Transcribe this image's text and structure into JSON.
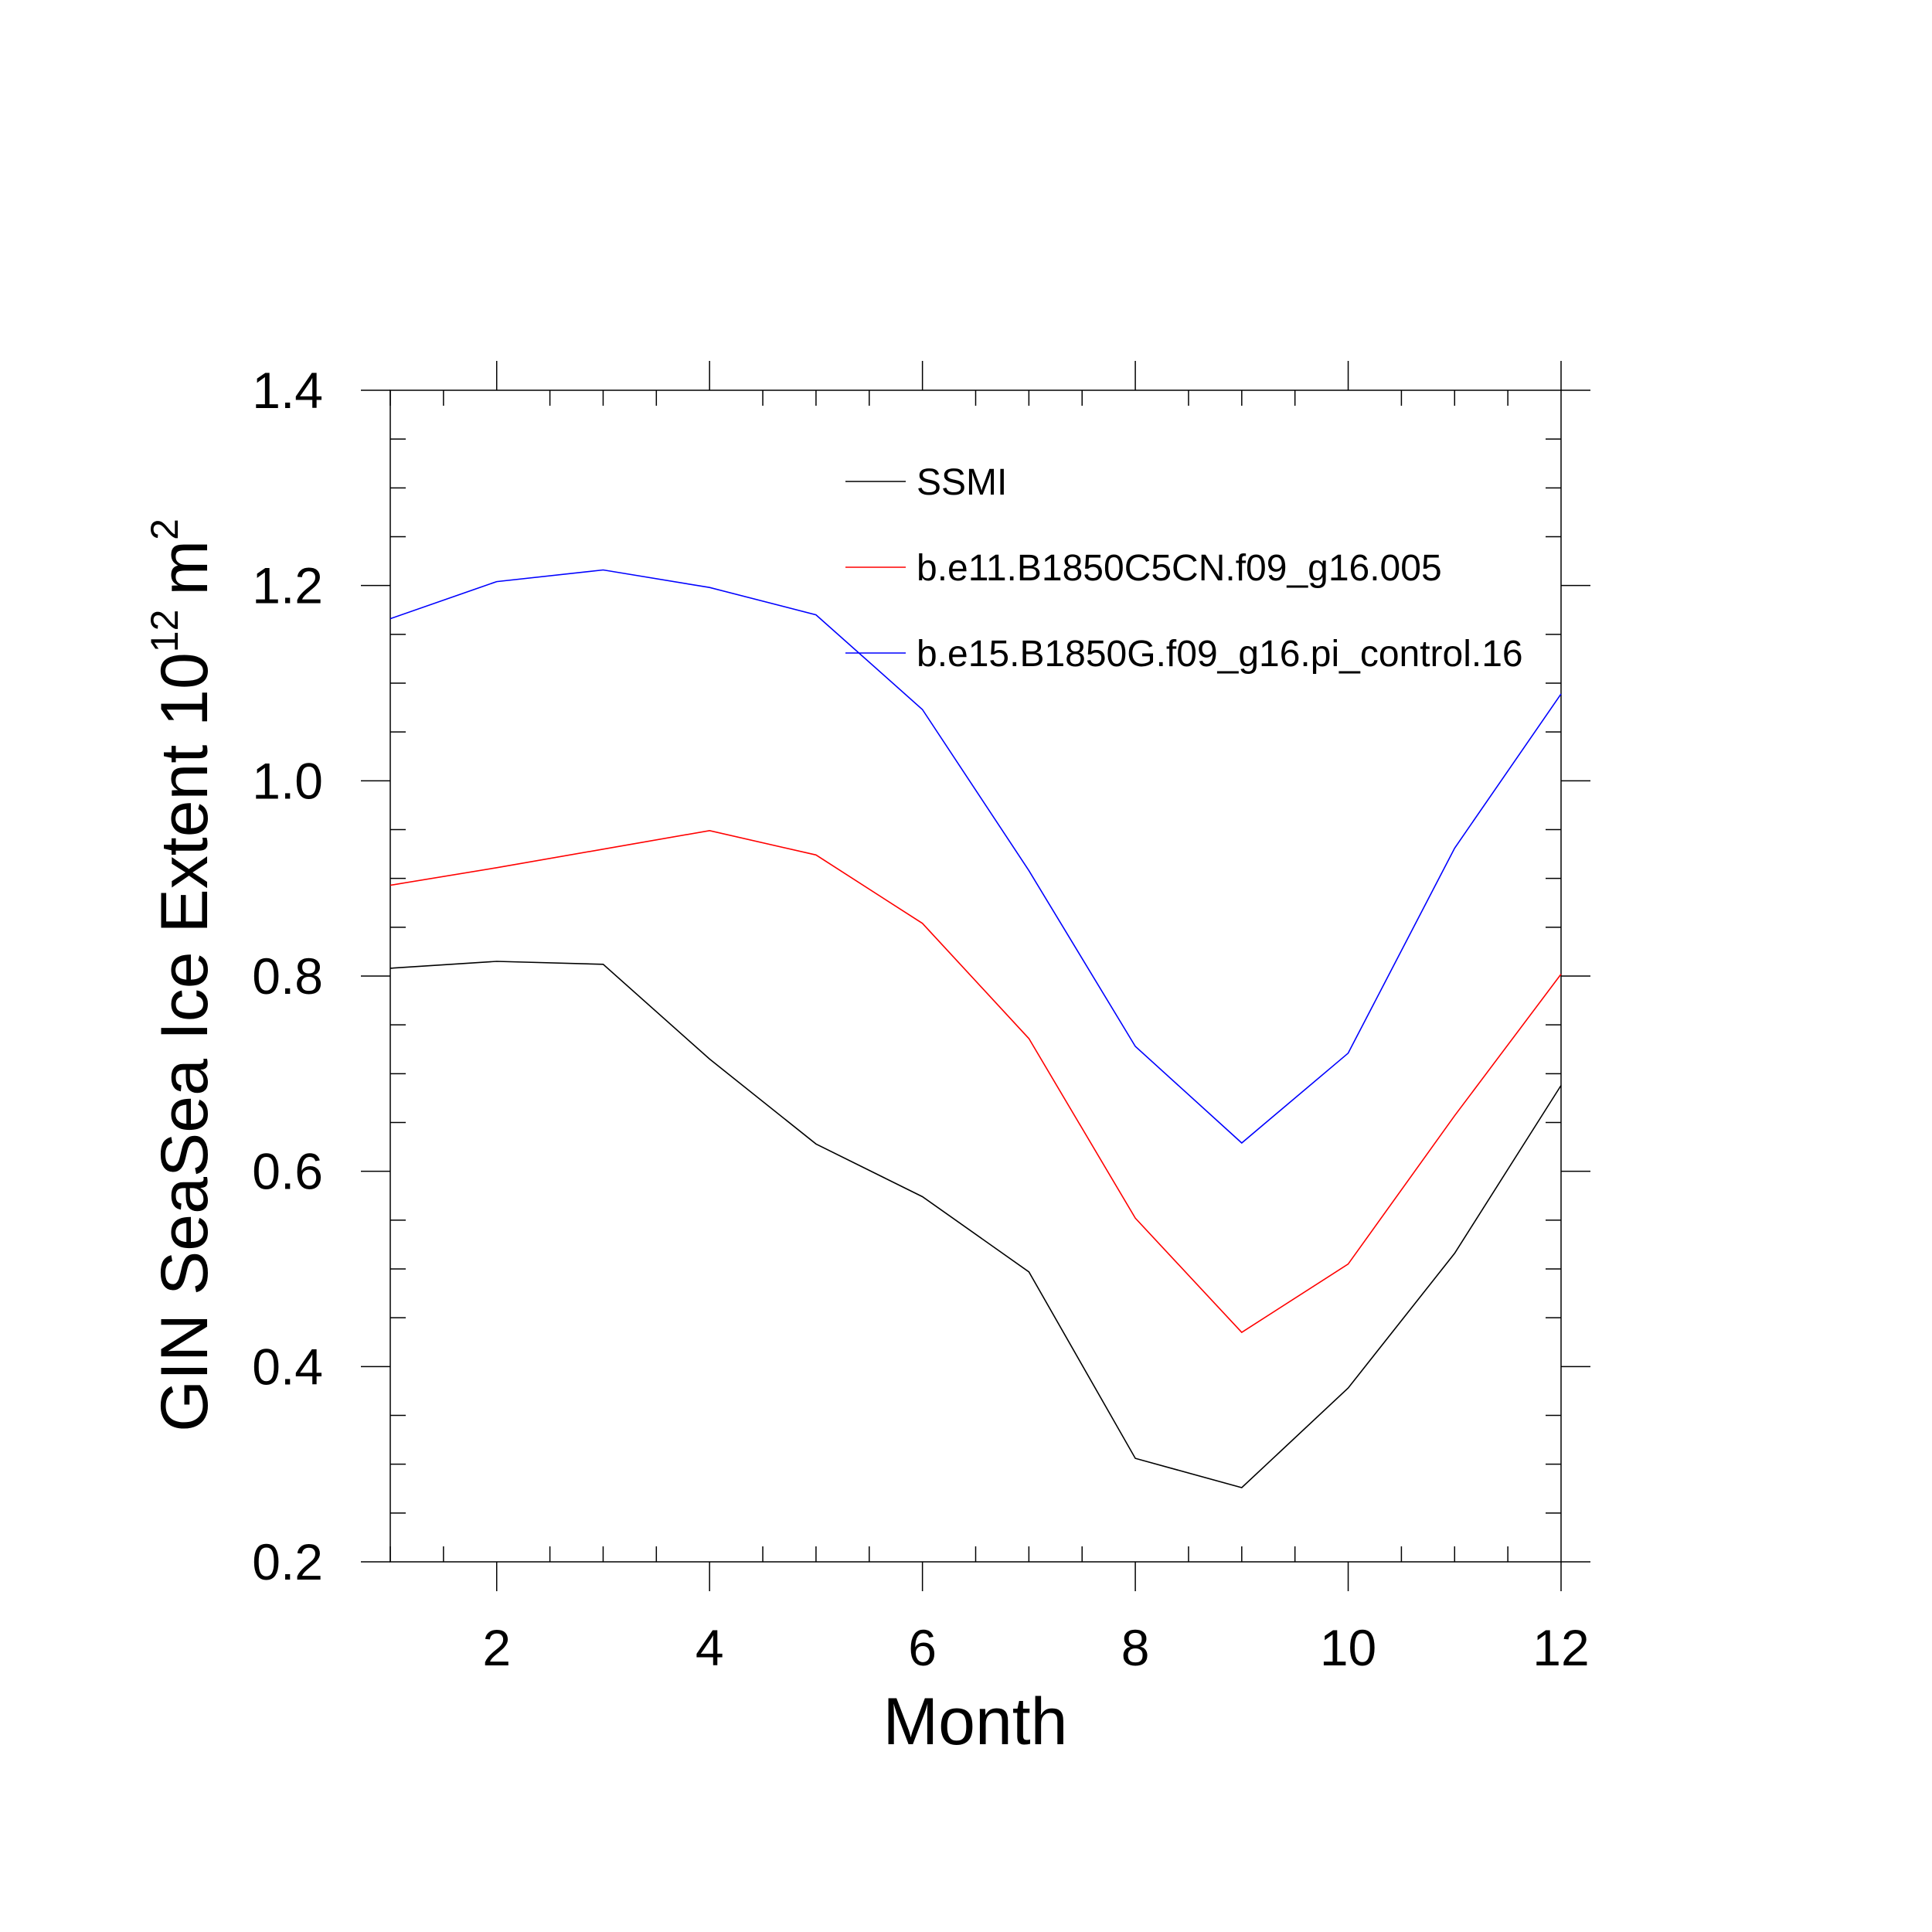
{
  "chart_data": {
    "type": "line",
    "title": "",
    "xlabel": "Month",
    "ylabel": {
      "text": "GIN SeaSea Ice Extent 10",
      "exponent": "12",
      "unit": "m",
      "unit_exponent": "2"
    },
    "x": [
      1,
      2,
      3,
      4,
      5,
      6,
      7,
      8,
      9,
      10,
      11,
      12
    ],
    "xlim": [
      1,
      12
    ],
    "ylim": [
      0.2,
      1.4
    ],
    "xticks": [
      2,
      4,
      6,
      8,
      10,
      12
    ],
    "yticks": [
      0.2,
      0.4,
      0.6,
      0.8,
      1.0,
      1.2,
      1.4
    ],
    "xtick_labels": [
      "2",
      "4",
      "6",
      "8",
      "10",
      "12"
    ],
    "ytick_labels": [
      "0.2",
      "0.4",
      "0.6",
      "0.8",
      "1.0",
      "1.2",
      "1.4"
    ],
    "grid": false,
    "legend_position": "top-right",
    "series": [
      {
        "name": "SSMI",
        "color": "#000000",
        "values": [
          0.808,
          0.815,
          0.812,
          0.715,
          0.628,
          0.574,
          0.497,
          0.306,
          0.276,
          0.378,
          0.516,
          0.688
        ]
      },
      {
        "name": "b.e11.B1850C5CN.f09_g16.005",
        "color": "#ff0000",
        "values": [
          0.893,
          0.911,
          0.93,
          0.949,
          0.924,
          0.854,
          0.736,
          0.552,
          0.435,
          0.505,
          0.657,
          0.802
        ]
      },
      {
        "name": "b.e15.B1850G.f09_g16.pi_control.16",
        "color": "#0000ff",
        "values": [
          1.166,
          1.204,
          1.216,
          1.198,
          1.17,
          1.073,
          0.908,
          0.728,
          0.629,
          0.721,
          0.931,
          1.089
        ]
      }
    ]
  }
}
